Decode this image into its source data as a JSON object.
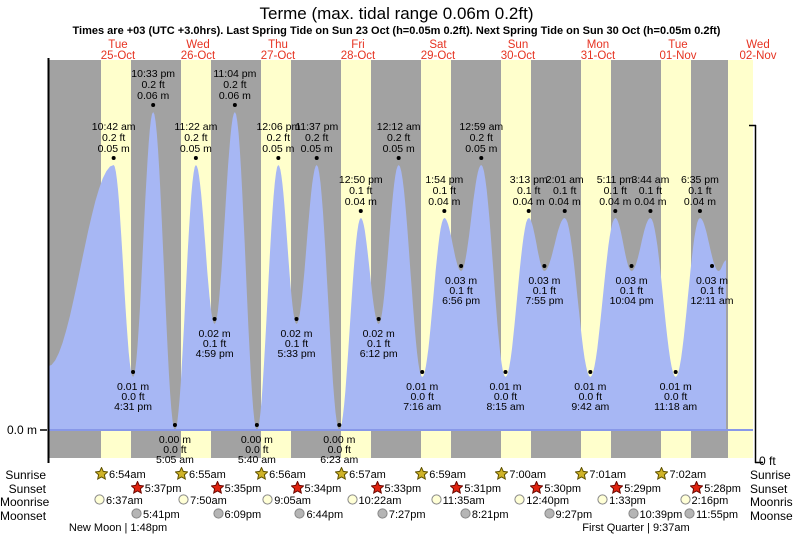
{
  "title": "Terme (max. tidal range 0.06m 0.2ft)",
  "subtitle": "Times are +03 (UTC +3.0hrs). Last Spring Tide on Sun 23 Oct (h=0.05m 0.2ft). Next Spring Tide on Sun 30 Oct (h=0.05m 0.2ft)",
  "axes": {
    "left_label": "0.0 m",
    "right_label": "0 ft"
  },
  "days": [
    {
      "weekday": "Tue",
      "date": "25-Oct"
    },
    {
      "weekday": "Wed",
      "date": "26-Oct"
    },
    {
      "weekday": "Thu",
      "date": "27-Oct"
    },
    {
      "weekday": "Fri",
      "date": "28-Oct"
    },
    {
      "weekday": "Sat",
      "date": "29-Oct"
    },
    {
      "weekday": "Sun",
      "date": "30-Oct"
    },
    {
      "weekday": "Mon",
      "date": "31-Oct"
    },
    {
      "weekday": "Tue",
      "date": "01-Nov"
    },
    {
      "weekday": "Wed",
      "date": "02-Nov"
    }
  ],
  "chart_data": {
    "type": "area",
    "title": "Terme tide height",
    "ylabel": "tide height",
    "ylim_m": [
      0.0,
      0.06
    ],
    "baseline_label_m": "0.0 m",
    "baseline_label_ft": "0 ft",
    "events": [
      {
        "day": 0,
        "time": "10:42 am",
        "type": "high",
        "m": 0.05,
        "m_label": "0.05 m",
        "ft_label": "0.2 ft"
      },
      {
        "day": 0,
        "time": "4:31 pm",
        "type": "low",
        "m": 0.01,
        "m_label": "0.01 m",
        "ft_label": "0.0 ft"
      },
      {
        "day": 0,
        "time": "10:33 pm",
        "type": "high",
        "m": 0.06,
        "m_label": "0.06 m",
        "ft_label": "0.2 ft"
      },
      {
        "day": 1,
        "time": "5:05 am",
        "type": "low",
        "m": 0.0,
        "m_label": "0.00 m",
        "ft_label": "0.0 ft"
      },
      {
        "day": 1,
        "time": "11:22 am",
        "type": "high",
        "m": 0.05,
        "m_label": "0.05 m",
        "ft_label": "0.2 ft"
      },
      {
        "day": 1,
        "time": "4:59 pm",
        "type": "low",
        "m": 0.02,
        "m_label": "0.02 m",
        "ft_label": "0.1 ft"
      },
      {
        "day": 1,
        "time": "11:04 pm",
        "type": "high",
        "m": 0.06,
        "m_label": "0.06 m",
        "ft_label": "0.2 ft"
      },
      {
        "day": 2,
        "time": "5:40 am",
        "type": "low",
        "m": 0.0,
        "m_label": "0.00 m",
        "ft_label": "0.0 ft"
      },
      {
        "day": 2,
        "time": "12:06 pm",
        "type": "high",
        "m": 0.05,
        "m_label": "0.05 m",
        "ft_label": "0.2 ft"
      },
      {
        "day": 2,
        "time": "5:33 pm",
        "type": "low",
        "m": 0.02,
        "m_label": "0.02 m",
        "ft_label": "0.1 ft"
      },
      {
        "day": 2,
        "time": "11:37 pm",
        "type": "high",
        "m": 0.05,
        "m_label": "0.05 m",
        "ft_label": "0.2 ft"
      },
      {
        "day": 3,
        "time": "6:23 am",
        "type": "low",
        "m": 0.0,
        "m_label": "0.00 m",
        "ft_label": "0.0 ft"
      },
      {
        "day": 3,
        "time": "12:50 pm",
        "type": "high",
        "m": 0.04,
        "m_label": "0.04 m",
        "ft_label": "0.1 ft"
      },
      {
        "day": 3,
        "time": "6:12 pm",
        "type": "low",
        "m": 0.02,
        "m_label": "0.02 m",
        "ft_label": "0.1 ft"
      },
      {
        "day": 4,
        "time": "12:12 am",
        "type": "high",
        "m": 0.05,
        "m_label": "0.05 m",
        "ft_label": "0.2 ft"
      },
      {
        "day": 4,
        "time": "7:16 am",
        "type": "low",
        "m": 0.01,
        "m_label": "0.01 m",
        "ft_label": "0.0 ft"
      },
      {
        "day": 4,
        "time": "1:54 pm",
        "type": "high",
        "m": 0.04,
        "m_label": "0.04 m",
        "ft_label": "0.1 ft"
      },
      {
        "day": 4,
        "time": "6:56 pm",
        "type": "low",
        "m": 0.03,
        "m_label": "0.03 m",
        "ft_label": "0.1 ft"
      },
      {
        "day": 5,
        "time": "12:59 am",
        "type": "high",
        "m": 0.05,
        "m_label": "0.05 m",
        "ft_label": "0.2 ft"
      },
      {
        "day": 5,
        "time": "8:15 am",
        "type": "low",
        "m": 0.01,
        "m_label": "0.01 m",
        "ft_label": "0.0 ft"
      },
      {
        "day": 5,
        "time": "3:13 pm",
        "type": "high",
        "m": 0.04,
        "m_label": "0.04 m",
        "ft_label": "0.1 ft"
      },
      {
        "day": 5,
        "time": "7:55 pm",
        "type": "low",
        "m": 0.03,
        "m_label": "0.03 m",
        "ft_label": "0.1 ft"
      },
      {
        "day": 6,
        "time": "2:01 am",
        "type": "high",
        "m": 0.04,
        "m_label": "0.04 m",
        "ft_label": "0.1 ft"
      },
      {
        "day": 6,
        "time": "9:42 am",
        "type": "low",
        "m": 0.01,
        "m_label": "0.01 m",
        "ft_label": "0.0 ft"
      },
      {
        "day": 6,
        "time": "5:11 pm",
        "type": "high",
        "m": 0.04,
        "m_label": "0.04 m",
        "ft_label": "0.1 ft"
      },
      {
        "day": 6,
        "time": "10:04 pm",
        "type": "low",
        "m": 0.03,
        "m_label": "0.03 m",
        "ft_label": "0.1 ft"
      },
      {
        "day": 7,
        "time": "3:44 am",
        "type": "high",
        "m": 0.04,
        "m_label": "0.04 m",
        "ft_label": "0.1 ft"
      },
      {
        "day": 7,
        "time": "11:18 am",
        "type": "low",
        "m": 0.01,
        "m_label": "0.01 m",
        "ft_label": "0.0 ft"
      },
      {
        "day": 7,
        "time": "6:35 pm",
        "type": "high",
        "m": 0.04,
        "m_label": "0.04 m",
        "ft_label": "0.1 ft"
      },
      {
        "day": 8,
        "time": "12:11 am",
        "type": "low",
        "m": 0.03,
        "m_label": "0.03 m",
        "ft_label": "0.1 ft"
      }
    ]
  },
  "astronomy": {
    "row_labels": [
      "Sunrise",
      "Sunset",
      "Moonrise",
      "Moonset"
    ],
    "sunrise": {
      "icon": "sunrise-star-icon",
      "times": [
        "6:54am",
        "6:55am",
        "6:56am",
        "6:57am",
        "6:59am",
        "7:00am",
        "7:01am",
        "7:02am"
      ]
    },
    "sunset": {
      "icon": "sunset-star-icon",
      "times": [
        "5:37pm",
        "5:35pm",
        "5:34pm",
        "5:33pm",
        "5:31pm",
        "5:30pm",
        "5:29pm",
        "5:28pm"
      ]
    },
    "moonrise": {
      "icon": "moonrise-circle-icon",
      "times": [
        "6:37am",
        "7:50am",
        "9:05am",
        "10:22am",
        "11:35am",
        "12:40pm",
        "1:33pm",
        "2:16pm"
      ]
    },
    "moonset": {
      "icon": "moonset-circle-icon",
      "times": [
        "5:41pm",
        "6:09pm",
        "6:44pm",
        "7:27pm",
        "8:21pm",
        "9:27pm",
        "10:39pm",
        "11:55pm"
      ]
    },
    "moon_phases": [
      {
        "label": "New Moon",
        "time": "1:48pm"
      },
      {
        "label": "First Quarter",
        "time": "9:37am"
      }
    ]
  },
  "colors": {
    "day_band": "#ffffcc",
    "night_band": "#a2a2a2",
    "tide_fill": "#a7b7f4",
    "baseline": "#8898e8",
    "header_red": "#e63322",
    "sun_star": "#cfb328",
    "sun_star_edge": "#5f5200",
    "sunset_star": "#e02410",
    "sunset_star_edge": "#6d0800",
    "moonrise_fill": "#ffffd6",
    "moonset_fill": "#b5b5b5",
    "moon_edge": "#888888"
  }
}
